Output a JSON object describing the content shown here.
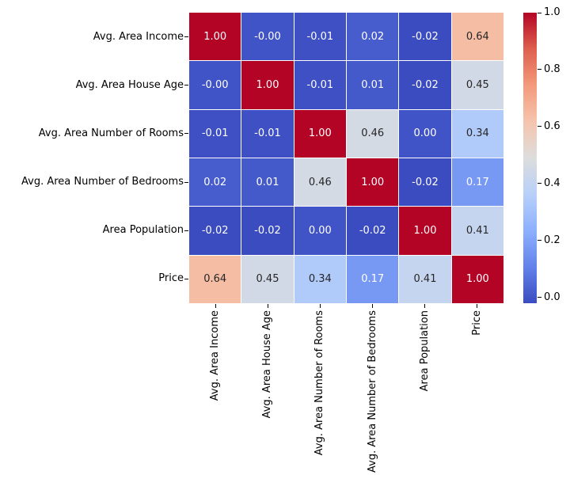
{
  "chart_data": {
    "type": "heatmap",
    "title": "",
    "categories": [
      "Avg. Area Income",
      "Avg. Area House Age",
      "Avg. Area Number of Rooms",
      "Avg. Area Number of Bedrooms",
      "Area Population",
      "Price"
    ],
    "annotations": [
      [
        "1.00",
        "-0.00",
        "-0.01",
        "0.02",
        "-0.02",
        "0.64"
      ],
      [
        "-0.00",
        "1.00",
        "-0.01",
        "0.01",
        "-0.02",
        "0.45"
      ],
      [
        "-0.01",
        "-0.01",
        "1.00",
        "0.46",
        "0.00",
        "0.34"
      ],
      [
        "0.02",
        "0.01",
        "0.46",
        "1.00",
        "-0.02",
        "0.17"
      ],
      [
        "-0.02",
        "-0.02",
        "0.00",
        "-0.02",
        "1.00",
        "0.41"
      ],
      [
        "0.64",
        "0.45",
        "0.34",
        "0.17",
        "0.41",
        "1.00"
      ]
    ],
    "vmin": -0.02,
    "vmax": 1.0,
    "colormap": {
      "name": "coolwarm",
      "anchors": [
        "#3B4CC0",
        "#6282EA",
        "#8DB0FE",
        "#B8D0F9",
        "#DDDDDD",
        "#F5C4AD",
        "#F49A7B",
        "#DE604D",
        "#B40426"
      ]
    },
    "colorbar": {
      "ticks": [
        0.0,
        0.2,
        0.4,
        0.6,
        0.8,
        1.0
      ],
      "tick_labels": [
        "0.0",
        "0.2",
        "0.4",
        "0.6",
        "0.8",
        "1.0"
      ]
    },
    "annot_text_colors": {
      "light": "#FFFFFF",
      "dark": "#262626"
    },
    "background": "#FFFFFF",
    "grid_line_color": "#FFFFFF",
    "axis_tick_color": "#000000"
  }
}
